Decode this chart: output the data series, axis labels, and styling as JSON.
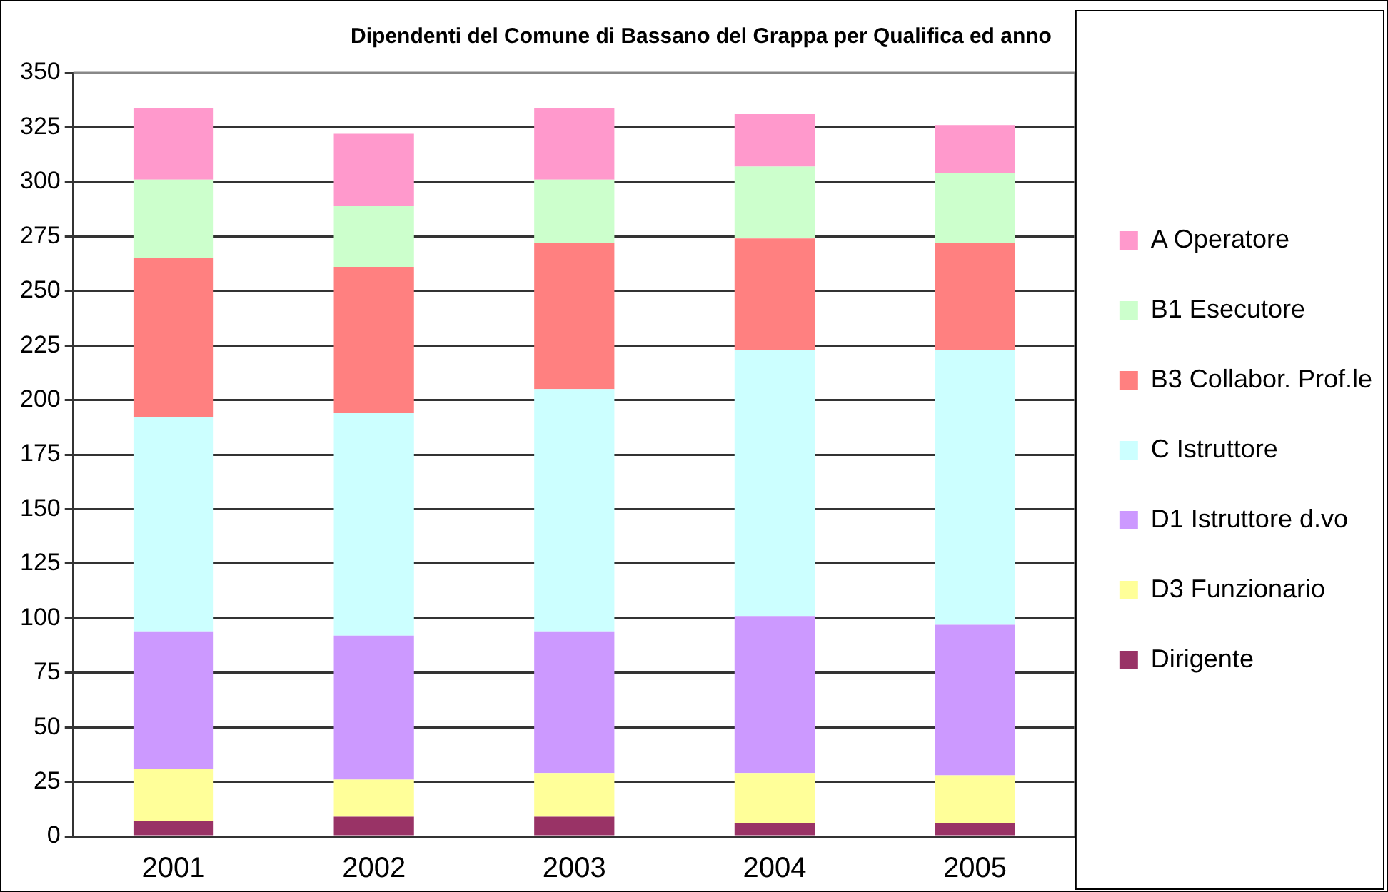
{
  "chart_data": {
    "type": "bar",
    "title": "Dipendenti del Comune di Bassano del Grappa per Qualifica ed anno",
    "categories": [
      "2001",
      "2002",
      "2003",
      "2004",
      "2005"
    ],
    "stacked": true,
    "ylim": [
      0,
      350
    ],
    "yticks": [
      0,
      25,
      50,
      75,
      100,
      125,
      150,
      175,
      200,
      225,
      250,
      275,
      300,
      325,
      350
    ],
    "grid": "y",
    "legend": "right",
    "series": [
      {
        "name": "Dirigente",
        "color": "#993366",
        "values": [
          7,
          9,
          9,
          6,
          6
        ]
      },
      {
        "name": "D3 Funzionario",
        "color": "#ffff99",
        "values": [
          24,
          17,
          20,
          23,
          22
        ]
      },
      {
        "name": "D1 Istruttore d.vo",
        "color": "#cc99ff",
        "values": [
          63,
          66,
          65,
          72,
          69
        ]
      },
      {
        "name": "C Istruttore",
        "color": "#ccffff",
        "values": [
          98,
          102,
          111,
          122,
          126
        ]
      },
      {
        "name": "B3 Collabor. Prof.le",
        "color": "#ff8080",
        "values": [
          73,
          67,
          67,
          51,
          49
        ]
      },
      {
        "name": "B1 Esecutore",
        "color": "#ccffcc",
        "values": [
          36,
          28,
          29,
          33,
          32
        ]
      },
      {
        "name": "A Operatore",
        "color": "#ff99cc",
        "values": [
          33,
          33,
          33,
          24,
          22
        ]
      }
    ]
  }
}
